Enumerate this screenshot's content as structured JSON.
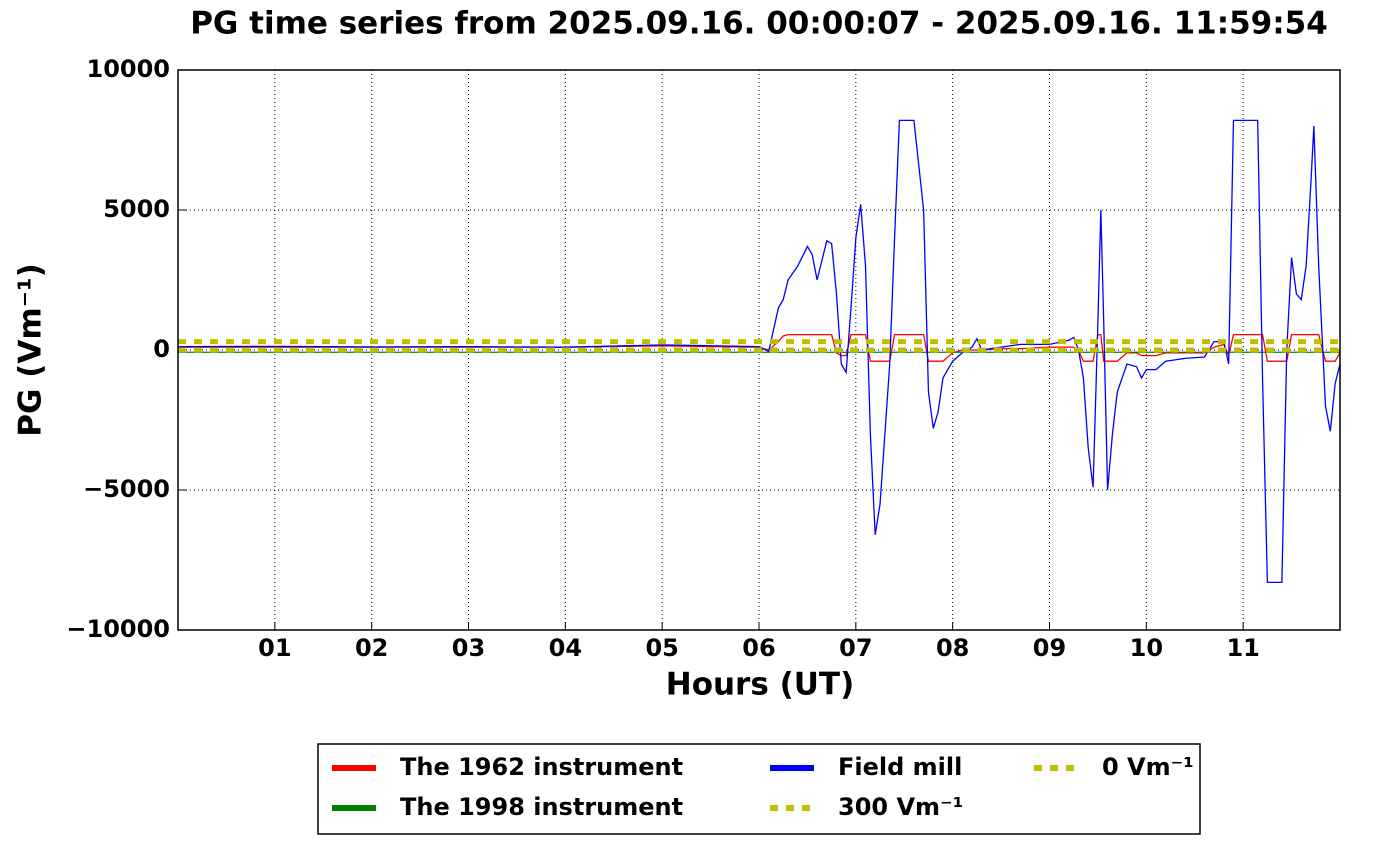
{
  "chart_data": {
    "type": "line",
    "title": "PG time series from 2025.09.16. 00:00:07 - 2025.09.16. 11:59:54",
    "x_label": "Hours (UT)",
    "y_label": "PG (Vm⁻¹)",
    "xlim": [
      0,
      12
    ],
    "xticks": [
      {
        "value": 1,
        "label": "01"
      },
      {
        "value": 2,
        "label": "02"
      },
      {
        "value": 3,
        "label": "03"
      },
      {
        "value": 4,
        "label": "04"
      },
      {
        "value": 5,
        "label": "05"
      },
      {
        "value": 6,
        "label": "06"
      },
      {
        "value": 7,
        "label": "07"
      },
      {
        "value": 8,
        "label": "08"
      },
      {
        "value": 9,
        "label": "09"
      },
      {
        "value": 10,
        "label": "10"
      },
      {
        "value": 11,
        "label": "11"
      }
    ],
    "ylim": [
      -10000,
      10000
    ],
    "yticks": [
      {
        "value": -10000,
        "label": "−10000"
      },
      {
        "value": -5000,
        "label": "−5000"
      },
      0,
      5000,
      10000
    ],
    "grid": true,
    "x": [
      0,
      1,
      2,
      3,
      4,
      5,
      6.0,
      6.1,
      6.2,
      6.25,
      6.3,
      6.4,
      6.5,
      6.55,
      6.6,
      6.7,
      6.75,
      6.8,
      6.85,
      6.9,
      6.95,
      7.0,
      7.05,
      7.1,
      7.15,
      7.2,
      7.25,
      7.3,
      7.35,
      7.4,
      7.45,
      7.6,
      7.7,
      7.75,
      7.8,
      7.85,
      7.9,
      8.0,
      8.1,
      8.2,
      8.25,
      8.3,
      8.5,
      8.7,
      9.0,
      9.2,
      9.25,
      9.3,
      9.35,
      9.4,
      9.45,
      9.5,
      9.53,
      9.56,
      9.6,
      9.65,
      9.7,
      9.8,
      9.9,
      9.95,
      10.0,
      10.1,
      10.2,
      10.4,
      10.6,
      10.7,
      10.8,
      10.85,
      10.9,
      11.15,
      11.2,
      11.25,
      11.4,
      11.45,
      11.5,
      11.55,
      11.6,
      11.65,
      11.7,
      11.73,
      11.78,
      11.85,
      11.9,
      11.95,
      12.0
    ],
    "series": [
      {
        "name": "The 1962 instrument",
        "color": "#ff0000",
        "values": [
          100,
          100,
          100,
          100,
          100,
          150,
          100,
          0,
          300,
          500,
          550,
          550,
          550,
          550,
          550,
          550,
          550,
          -100,
          -200,
          -200,
          550,
          550,
          550,
          550,
          -400,
          -400,
          -400,
          -400,
          -400,
          550,
          550,
          550,
          550,
          -400,
          -400,
          -400,
          -400,
          -100,
          0,
          0,
          0,
          0,
          50,
          50,
          100,
          100,
          100,
          0,
          -400,
          -400,
          -400,
          550,
          550,
          -400,
          -400,
          -400,
          -400,
          -100,
          -100,
          -200,
          -200,
          -200,
          -100,
          -100,
          -100,
          100,
          200,
          -200,
          550,
          550,
          550,
          -400,
          -400,
          -400,
          550,
          550,
          550,
          550,
          550,
          550,
          550,
          -400,
          -400,
          -400,
          -100
        ]
      },
      {
        "name": "The 1998 instrument",
        "color": "#008000",
        "values": [
          -80,
          -80,
          -80,
          -80,
          -80,
          -80,
          -80,
          -80,
          -80,
          -80,
          -80,
          -80,
          -80,
          -80,
          -80,
          -80,
          -80,
          -80,
          -80,
          -80,
          -80,
          -80,
          -80,
          -80,
          -80,
          -80,
          -80,
          -80,
          -80,
          -80,
          -80,
          -80,
          -80,
          -80,
          -80,
          -80,
          -80,
          -80,
          -80,
          -80,
          -80,
          -80,
          -80,
          -80,
          -80,
          -80,
          -80,
          -80,
          -80,
          -80,
          -80,
          -80,
          -80,
          -80,
          -80,
          -80,
          -80,
          -80,
          -80,
          -80,
          -80,
          -80,
          -80,
          -80,
          -80,
          -80,
          -80,
          -80,
          -80,
          -80,
          -80,
          -80,
          -80,
          -80,
          -80,
          -80,
          -80,
          -80,
          -80,
          -80,
          -80,
          -80,
          -80,
          -80,
          -80
        ]
      },
      {
        "name": "Field mill",
        "color": "#0000ff",
        "values": [
          120,
          130,
          110,
          120,
          100,
          180,
          120,
          -50,
          1500,
          1800,
          2500,
          3000,
          3700,
          3400,
          2500,
          3900,
          3800,
          2000,
          -500,
          -800,
          1500,
          4000,
          5200,
          3000,
          -3000,
          -6600,
          -5500,
          -3000,
          -500,
          4000,
          8200,
          8200,
          5000,
          -1500,
          -2800,
          -2200,
          -1000,
          -400,
          -100,
          100,
          400,
          0,
          100,
          200,
          200,
          350,
          450,
          0,
          -1000,
          -3500,
          -4900,
          1000,
          5000,
          1000,
          -5000,
          -3000,
          -1500,
          -500,
          -600,
          -1000,
          -700,
          -700,
          -400,
          -300,
          -250,
          300,
          300,
          -500,
          8200,
          8200,
          -1000,
          -8300,
          -8300,
          0,
          3300,
          2000,
          1800,
          3000,
          6000,
          8000,
          3000,
          -2000,
          -2900,
          -1200,
          -500
        ]
      }
    ],
    "reference_lines": [
      {
        "name": "300 Vm⁻¹",
        "color": "#bfbf00",
        "value": 300
      },
      {
        "name": "0 Vm⁻¹",
        "color": "#bfbf00",
        "value": 0
      }
    ]
  }
}
